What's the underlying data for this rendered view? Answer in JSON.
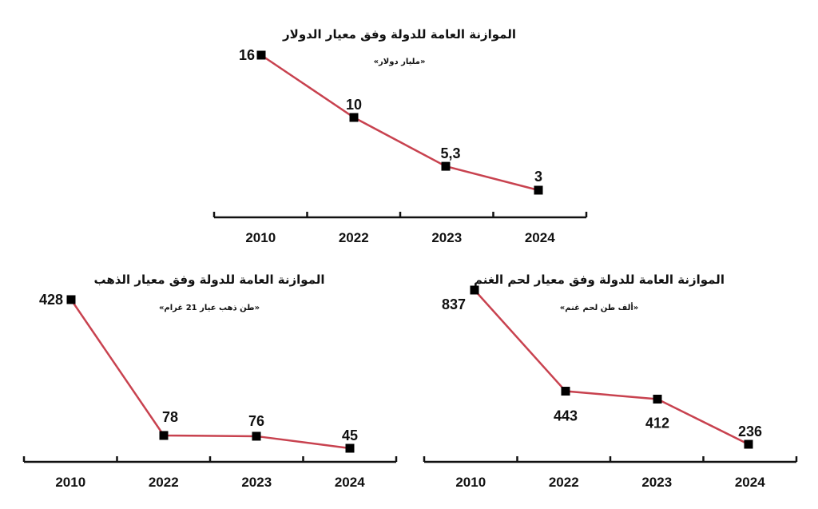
{
  "chart_data": [
    {
      "type": "line",
      "title": "الموازنة العامة للدولة وفق معيار الدولار",
      "subtitle": "«مليار دولار»",
      "categories": [
        "2010",
        "2022",
        "2023",
        "2024"
      ],
      "values": [
        16,
        10,
        5.3,
        3
      ],
      "value_labels": [
        "16",
        "10",
        "5,3",
        "3"
      ],
      "line_color": "#c8424f"
    },
    {
      "type": "line",
      "title": "الموازنة العامة للدولة وفق معيار الذهب",
      "subtitle": "«طن ذهب عيار 21 غرام»",
      "categories": [
        "2010",
        "2022",
        "2023",
        "2024"
      ],
      "values": [
        428,
        78,
        76,
        45
      ],
      "value_labels": [
        "428",
        "78",
        "76",
        "45"
      ],
      "line_color": "#c8424f"
    },
    {
      "type": "line",
      "title": "الموازنة العامة للدولة وفق معيار لحم الغنم",
      "subtitle": "«ألف طن لحم غنم»",
      "categories": [
        "2010",
        "2022",
        "2023",
        "2024"
      ],
      "values": [
        837,
        443,
        412,
        236
      ],
      "value_labels": [
        "837",
        "443",
        "412",
        "236"
      ],
      "line_color": "#c8424f"
    }
  ]
}
